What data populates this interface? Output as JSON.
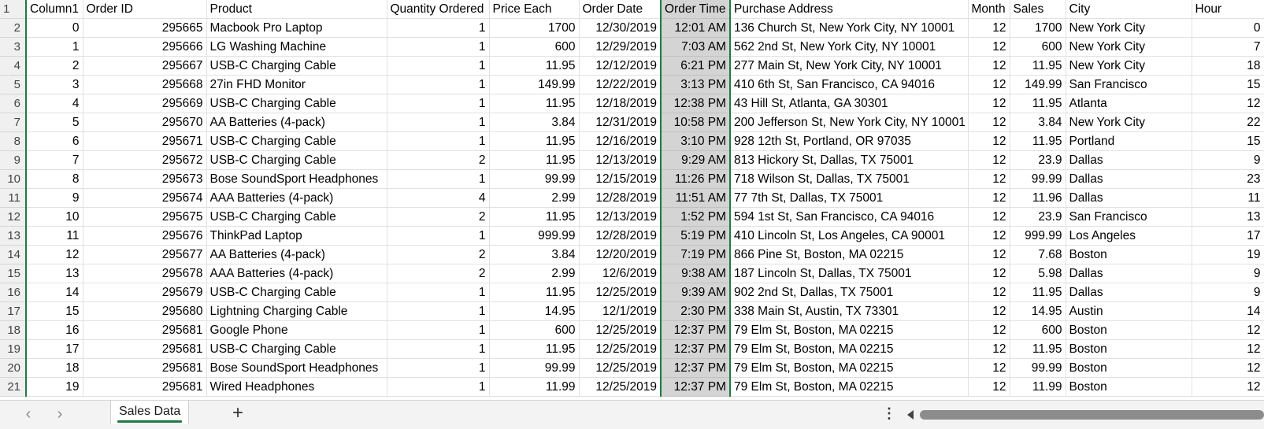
{
  "sheet": {
    "columns": [
      "Column1",
      "Order ID",
      "Product",
      "Quantity Ordered",
      "Price Each",
      "Order Date",
      "Order Time",
      "Purchase Address",
      "Month",
      "Sales",
      "City",
      "Hour"
    ],
    "header_row_number": "1",
    "rows": [
      [
        "2",
        "0",
        "295665",
        "Macbook Pro Laptop",
        "1",
        "1700",
        "12/30/2019",
        "12:01 AM",
        "136 Church St, New York City, NY 10001",
        "12",
        "1700",
        "New York City",
        "0"
      ],
      [
        "3",
        "1",
        "295666",
        "LG Washing Machine",
        "1",
        "600",
        "12/29/2019",
        "7:03 AM",
        "562 2nd St, New York City, NY 10001",
        "12",
        "600",
        "New York City",
        "7"
      ],
      [
        "4",
        "2",
        "295667",
        "USB-C Charging Cable",
        "1",
        "11.95",
        "12/12/2019",
        "6:21 PM",
        "277 Main St, New York City, NY 10001",
        "12",
        "11.95",
        "New York City",
        "18"
      ],
      [
        "5",
        "3",
        "295668",
        "27in FHD Monitor",
        "1",
        "149.99",
        "12/22/2019",
        "3:13 PM",
        "410 6th St, San Francisco, CA 94016",
        "12",
        "149.99",
        "San Francisco",
        "15"
      ],
      [
        "6",
        "4",
        "295669",
        "USB-C Charging Cable",
        "1",
        "11.95",
        "12/18/2019",
        "12:38 PM",
        "43 Hill St, Atlanta, GA 30301",
        "12",
        "11.95",
        "Atlanta",
        "12"
      ],
      [
        "7",
        "5",
        "295670",
        "AA Batteries (4-pack)",
        "1",
        "3.84",
        "12/31/2019",
        "10:58 PM",
        "200 Jefferson St, New York City, NY 10001",
        "12",
        "3.84",
        "New York City",
        "22"
      ],
      [
        "8",
        "6",
        "295671",
        "USB-C Charging Cable",
        "1",
        "11.95",
        "12/16/2019",
        "3:10 PM",
        "928 12th St, Portland, OR 97035",
        "12",
        "11.95",
        "Portland",
        "15"
      ],
      [
        "9",
        "7",
        "295672",
        "USB-C Charging Cable",
        "2",
        "11.95",
        "12/13/2019",
        "9:29 AM",
        "813 Hickory St, Dallas, TX 75001",
        "12",
        "23.9",
        "Dallas",
        "9"
      ],
      [
        "10",
        "8",
        "295673",
        "Bose SoundSport Headphones",
        "1",
        "99.99",
        "12/15/2019",
        "11:26 PM",
        "718 Wilson St, Dallas, TX 75001",
        "12",
        "99.99",
        "Dallas",
        "23"
      ],
      [
        "11",
        "9",
        "295674",
        "AAA Batteries (4-pack)",
        "4",
        "2.99",
        "12/28/2019",
        "11:51 AM",
        "77 7th St, Dallas, TX 75001",
        "12",
        "11.96",
        "Dallas",
        "11"
      ],
      [
        "12",
        "10",
        "295675",
        "USB-C Charging Cable",
        "2",
        "11.95",
        "12/13/2019",
        "1:52 PM",
        "594 1st St, San Francisco, CA 94016",
        "12",
        "23.9",
        "San Francisco",
        "13"
      ],
      [
        "13",
        "11",
        "295676",
        "ThinkPad Laptop",
        "1",
        "999.99",
        "12/28/2019",
        "5:19 PM",
        "410 Lincoln St, Los Angeles, CA 90001",
        "12",
        "999.99",
        "Los Angeles",
        "17"
      ],
      [
        "14",
        "12",
        "295677",
        "AA Batteries (4-pack)",
        "2",
        "3.84",
        "12/20/2019",
        "7:19 PM",
        "866 Pine St, Boston, MA 02215",
        "12",
        "7.68",
        "Boston",
        "19"
      ],
      [
        "15",
        "13",
        "295678",
        "AAA Batteries (4-pack)",
        "2",
        "2.99",
        "12/6/2019",
        "9:38 AM",
        "187 Lincoln St, Dallas, TX 75001",
        "12",
        "5.98",
        "Dallas",
        "9"
      ],
      [
        "16",
        "14",
        "295679",
        "USB-C Charging Cable",
        "1",
        "11.95",
        "12/25/2019",
        "9:39 AM",
        "902 2nd St, Dallas, TX 75001",
        "12",
        "11.95",
        "Dallas",
        "9"
      ],
      [
        "17",
        "15",
        "295680",
        "Lightning Charging Cable",
        "1",
        "14.95",
        "12/1/2019",
        "2:30 PM",
        "338 Main St, Austin, TX 73301",
        "12",
        "14.95",
        "Austin",
        "14"
      ],
      [
        "18",
        "16",
        "295681",
        "Google Phone",
        "1",
        "600",
        "12/25/2019",
        "12:37 PM",
        "79 Elm St, Boston, MA 02215",
        "12",
        "600",
        "Boston",
        "12"
      ],
      [
        "19",
        "17",
        "295681",
        "USB-C Charging Cable",
        "1",
        "11.95",
        "12/25/2019",
        "12:37 PM",
        "79 Elm St, Boston, MA 02215",
        "12",
        "11.95",
        "Boston",
        "12"
      ],
      [
        "20",
        "18",
        "295681",
        "Bose SoundSport Headphones",
        "1",
        "99.99",
        "12/25/2019",
        "12:37 PM",
        "79 Elm St, Boston, MA 02215",
        "12",
        "99.99",
        "Boston",
        "12"
      ],
      [
        "21",
        "19",
        "295681",
        "Wired Headphones",
        "1",
        "11.99",
        "12/25/2019",
        "12:37 PM",
        "79 Elm St, Boston, MA 02215",
        "12",
        "11.99",
        "Boston",
        "12"
      ]
    ],
    "selected_column": "Order Time"
  },
  "tabbar": {
    "tabs": [
      {
        "label": "Sales Data",
        "active": true
      }
    ],
    "prev_icon": "chevron-left-icon",
    "next_icon": "chevron-right-icon",
    "add_icon": "plus-icon",
    "more_icon": "more-vertical-icon"
  },
  "colors": {
    "accent": "#1e7a45",
    "selection": "#d4d4d4",
    "header_bg": "#f0f0f0"
  }
}
